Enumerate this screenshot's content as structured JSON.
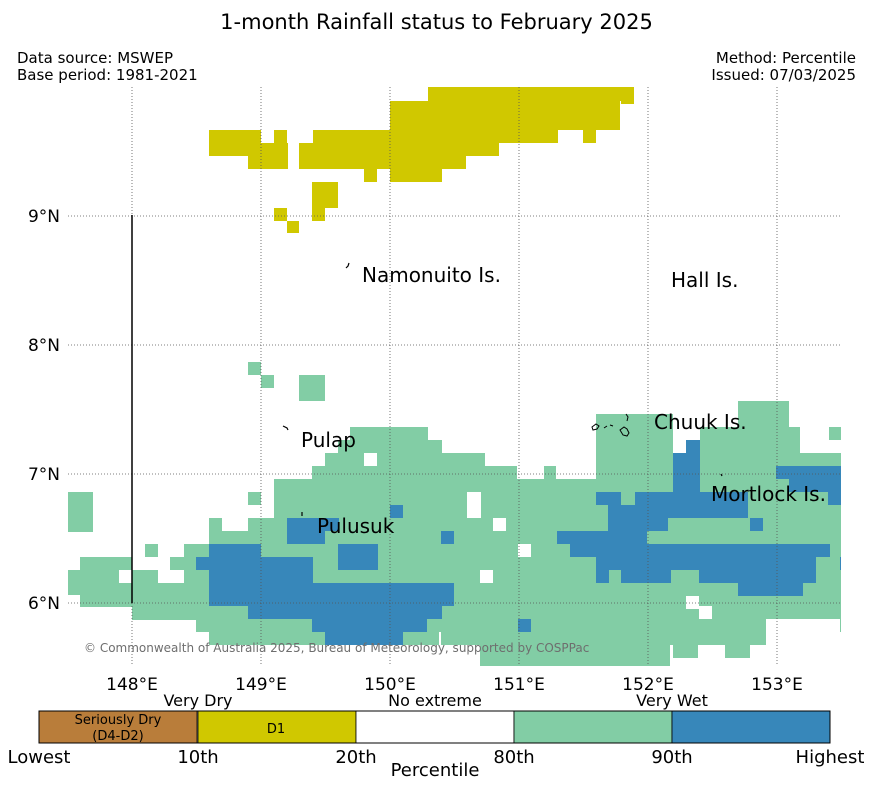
{
  "title": "1-month Rainfall status to February 2025",
  "data_source": "Data source: MSWEP",
  "base_period": "Base period: 1981-2021",
  "method": "Method: Percentile",
  "issued": "Issued: 07/03/2025",
  "copyright": "© Commonwealth of Australia 2025, Bureau of Meteorology, supported by COSPPac",
  "map": {
    "lon_range": [
      147.5,
      153.5
    ],
    "lat_range": [
      5.5,
      9.95
    ],
    "lon_ticks": [
      "148°E",
      "149°E",
      "150°E",
      "151°E",
      "152°E",
      "153°E"
    ],
    "lat_ticks": [
      "9°N",
      "8°N",
      "7°N",
      "6°N"
    ],
    "colors": {
      "seriously_dry": "#b97d3a",
      "very_dry": "#d0c800",
      "no_extreme": "#ffffff",
      "very_wet": "#82cda5",
      "very_much_wet": "#3787ba"
    },
    "places": [
      {
        "name": "Namonuito Is.",
        "lon": 149.75,
        "lat": 8.55
      },
      {
        "name": "Hall Is.",
        "lon": 152.15,
        "lat": 8.5
      },
      {
        "name": "Pulap",
        "lon": 149.3,
        "lat": 7.25
      },
      {
        "name": "Chuuk Is.",
        "lon": 152.0,
        "lat": 7.4
      },
      {
        "name": "Mortlock Is.",
        "lon": 152.45,
        "lat": 6.85
      },
      {
        "name": "Pulusuk",
        "lon": 149.4,
        "lat": 6.6
      }
    ]
  },
  "legend": {
    "category_labels": [
      "Very Dry",
      "No extreme",
      "Very Wet"
    ],
    "box_labels": [
      "Seriously Dry",
      "(D4-D2)",
      "D1"
    ],
    "ticks": [
      "Lowest",
      "10th",
      "20th",
      "80th",
      "90th",
      "Highest"
    ],
    "xlabel": "Percentile"
  }
}
